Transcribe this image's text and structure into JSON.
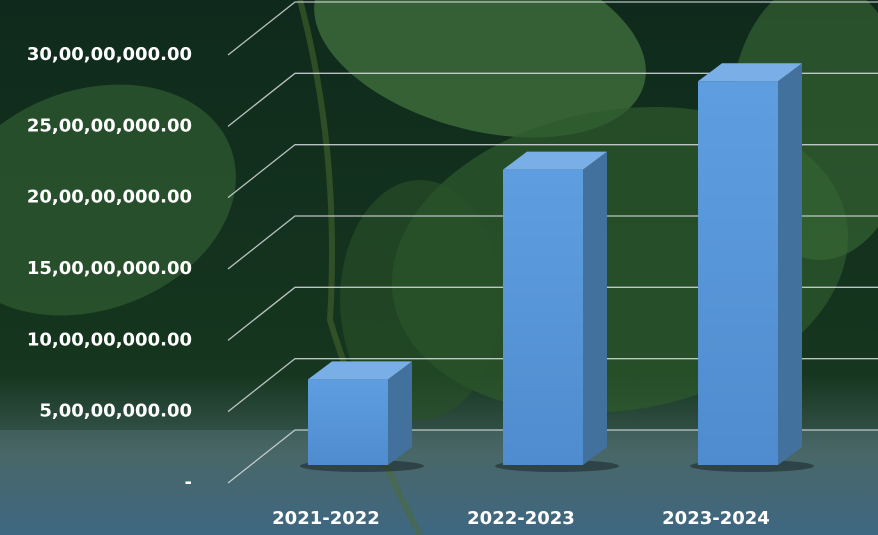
{
  "chart_data": {
    "type": "bar3d",
    "categories": [
      "2021-2022",
      "2022-2023",
      "2023-2024"
    ],
    "values": [
      60000000,
      207000000,
      269000000
    ],
    "color": "#5b9bd5",
    "ylim": [
      0,
      300000000
    ],
    "yticks": [
      {
        "value": 0,
        "label": "-"
      },
      {
        "value": 50000000,
        "label": "5,00,00,000.00"
      },
      {
        "value": 100000000,
        "label": "10,00,00,000.00"
      },
      {
        "value": 150000000,
        "label": "15,00,00,000.00"
      },
      {
        "value": 200000000,
        "label": "20,00,00,000.00"
      },
      {
        "value": 250000000,
        "label": "25,00,00,000.00"
      },
      {
        "value": 300000000,
        "label": "30,00,00,000.00"
      }
    ],
    "grid": true
  }
}
